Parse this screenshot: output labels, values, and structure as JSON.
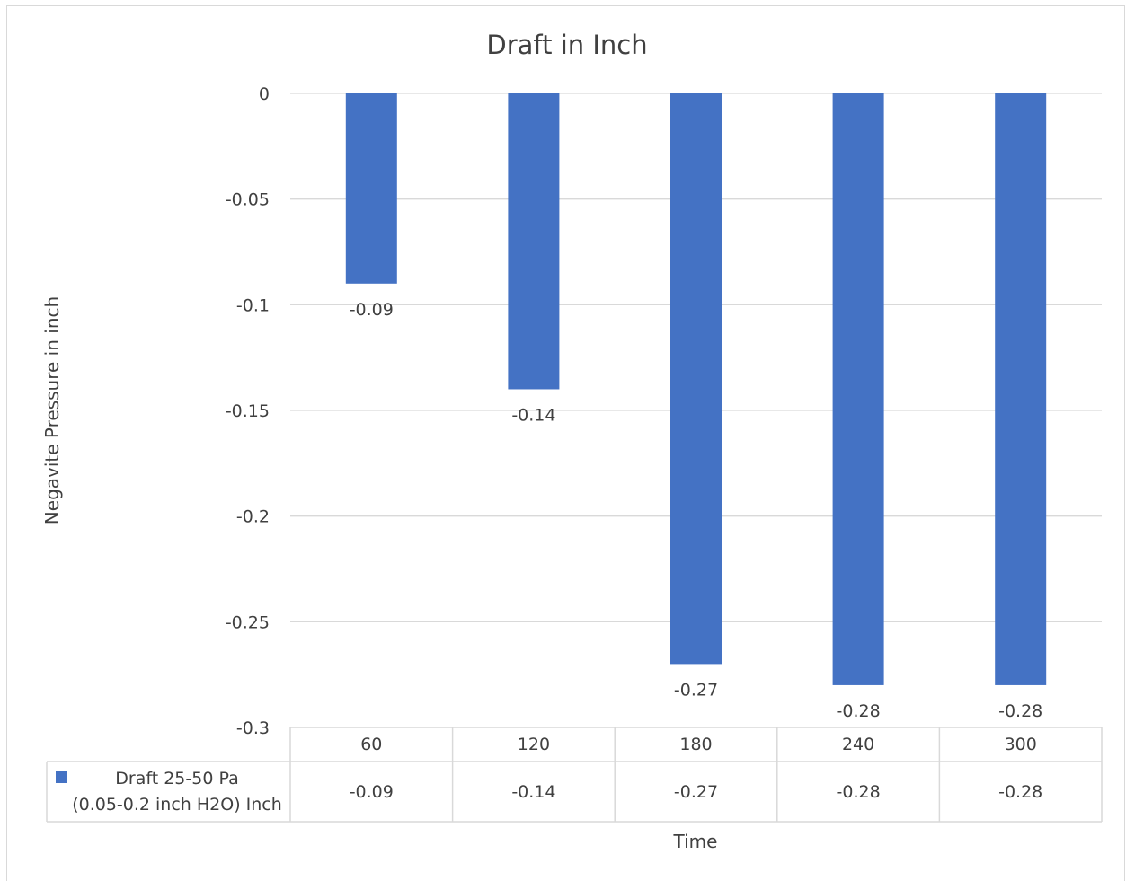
{
  "chart_data": {
    "type": "bar",
    "title": "Draft in Inch",
    "xlabel": "Time",
    "ylabel": "Negavite Pressure in inch",
    "categories": [
      "60",
      "120",
      "180",
      "240",
      "300"
    ],
    "series": [
      {
        "name": "Draft 25-50 Pa (0.05-0.2 inch H2O) Inch",
        "legend_lines": [
          "Draft 25-50 Pa",
          "(0.05-0.2 inch H2O) Inch"
        ],
        "color": "#4472C4",
        "values": [
          -0.09,
          -0.14,
          -0.27,
          -0.28,
          -0.28
        ],
        "labels": [
          "-0.09",
          "-0.14",
          "-0.27",
          "-0.28",
          "-0.28"
        ]
      }
    ],
    "ylim": [
      -0.3,
      0
    ],
    "yticks": [
      "0",
      "-0.05",
      "-0.1",
      "-0.15",
      "-0.2",
      "-0.25",
      "-0.3"
    ],
    "grid": true,
    "legend": "data-table",
    "data_table": true
  },
  "colors": {
    "bar": "#4472C4",
    "grid": "#d9d9d9",
    "text": "#404040"
  }
}
